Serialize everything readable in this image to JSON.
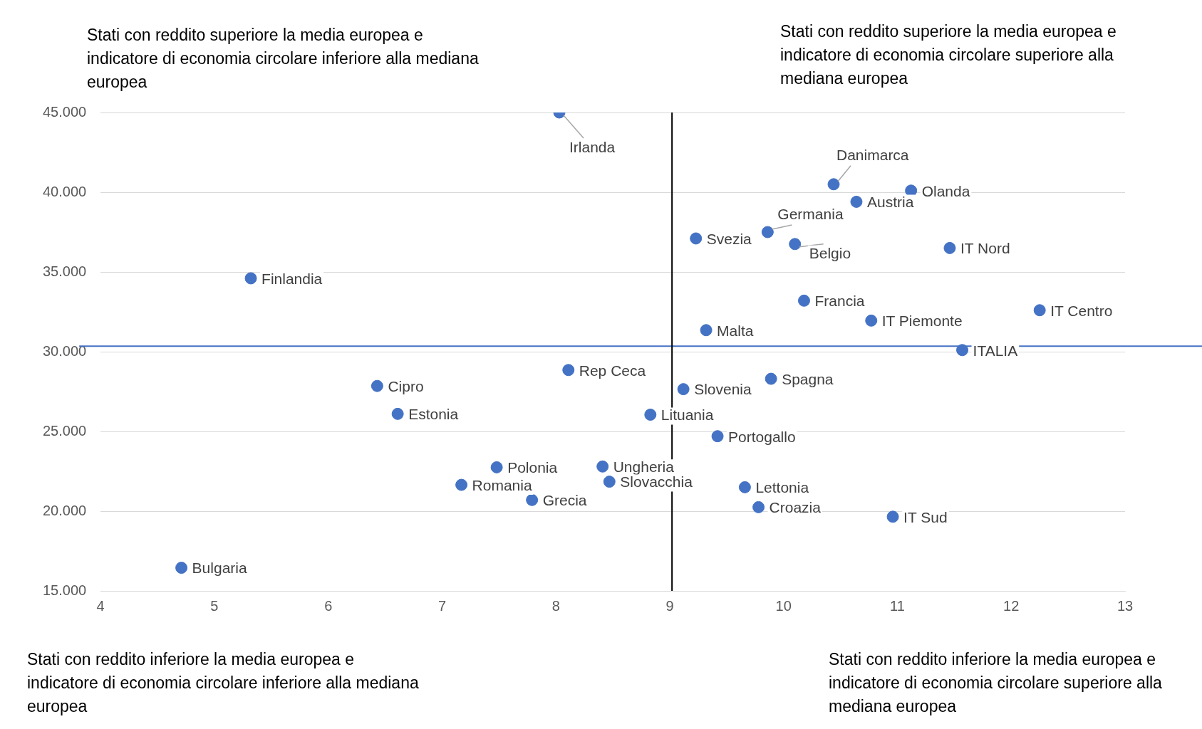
{
  "chart_data": {
    "type": "scatter",
    "annotations": [
      "Stati con reddito superiore la media europea e indicatore di economia circolare inferiore alla mediana europea",
      "Stati con reddito superiore la media europea e indicatore di economia circolare superiore alla mediana europea",
      "Stati con reddito inferiore la media europea e indicatore di economia circolare inferiore  alla mediana europea",
      "Stati con reddito inferiore la media europea e indicatore di economia circolare superiore alla mediana europea"
    ],
    "series": [
      {
        "name": "Irlanda",
        "color": "#4472c4",
        "x": [
          8.03
        ],
        "values": [
          45000
        ]
      },
      {
        "name": "Danimarca",
        "color": "#4472c4",
        "x": [
          10.44
        ],
        "values": [
          40500
        ]
      },
      {
        "name": "Olanda",
        "color": "#4472c4",
        "x": [
          11.12
        ],
        "values": [
          40100
        ]
      },
      {
        "name": "Austria",
        "color": "#4472c4",
        "x": [
          10.64
        ],
        "values": [
          39400
        ]
      },
      {
        "name": "Germania",
        "color": "#4472c4",
        "x": [
          9.86
        ],
        "values": [
          37500
        ]
      },
      {
        "name": "Svezia",
        "color": "#4472c4",
        "x": [
          9.23
        ],
        "values": [
          37100
        ]
      },
      {
        "name": "Belgio",
        "color": "#4472c4",
        "x": [
          10.1
        ],
        "values": [
          36750
        ]
      },
      {
        "name": "IT Nord",
        "color": "#4472c4",
        "x": [
          11.46
        ],
        "values": [
          36500
        ]
      },
      {
        "name": "Finlandia",
        "color": "#4472c4",
        "x": [
          5.32
        ],
        "values": [
          34600
        ]
      },
      {
        "name": "Francia",
        "color": "#4472c4",
        "x": [
          10.18
        ],
        "values": [
          33200
        ]
      },
      {
        "name": "IT Centro",
        "color": "#4472c4",
        "x": [
          12.25
        ],
        "values": [
          32600
        ]
      },
      {
        "name": "IT Piemonte",
        "color": "#4472c4",
        "x": [
          10.77
        ],
        "values": [
          31950
        ]
      },
      {
        "name": "Malta",
        "color": "#4472c4",
        "x": [
          9.32
        ],
        "values": [
          31350
        ]
      },
      {
        "name": "ITALIA",
        "color": "#4472c4",
        "x": [
          11.57
        ],
        "values": [
          30100
        ]
      },
      {
        "name": "Rep Ceca",
        "color": "#4472c4",
        "x": [
          8.11
        ],
        "values": [
          28850
        ]
      },
      {
        "name": "Spagna",
        "color": "#4472c4",
        "x": [
          9.89
        ],
        "values": [
          28300
        ]
      },
      {
        "name": "Cipro",
        "color": "#4472c4",
        "x": [
          6.43
        ],
        "values": [
          27850
        ]
      },
      {
        "name": "Slovenia",
        "color": "#4472c4",
        "x": [
          9.12
        ],
        "values": [
          27650
        ]
      },
      {
        "name": "Estonia",
        "color": "#4472c4",
        "x": [
          6.61
        ],
        "values": [
          26100
        ]
      },
      {
        "name": "Lituania",
        "color": "#4472c4",
        "x": [
          8.83
        ],
        "values": [
          26050
        ]
      },
      {
        "name": "Portogallo",
        "color": "#4472c4",
        "x": [
          9.42
        ],
        "values": [
          24700
        ]
      },
      {
        "name": "Polonia",
        "color": "#4472c4",
        "x": [
          7.48
        ],
        "values": [
          22750
        ]
      },
      {
        "name": "Ungheria",
        "color": "#4472c4",
        "x": [
          8.41
        ],
        "values": [
          22800
        ]
      },
      {
        "name": "Slovacchia",
        "color": "#4472c4",
        "x": [
          8.47
        ],
        "values": [
          21850
        ]
      },
      {
        "name": "Romania",
        "color": "#4472c4",
        "x": [
          7.17
        ],
        "values": [
          21650
        ]
      },
      {
        "name": "Lettonia",
        "color": "#4472c4",
        "x": [
          9.66
        ],
        "values": [
          21500
        ]
      },
      {
        "name": "Grecia",
        "color": "#4472c4",
        "x": [
          7.79
        ],
        "values": [
          20700
        ]
      },
      {
        "name": "Croazia",
        "color": "#4472c4",
        "x": [
          9.78
        ],
        "values": [
          20250
        ]
      },
      {
        "name": "IT Sud",
        "color": "#4472c4",
        "x": [
          10.96
        ],
        "values": [
          19650
        ]
      },
      {
        "name": "Bulgaria",
        "color": "#4472c4",
        "x": [
          4.71
        ],
        "values": [
          16450
        ]
      }
    ],
    "xlim": [
      4,
      13
    ],
    "xticks": [
      4,
      5,
      6,
      7,
      8,
      9,
      10,
      11,
      12,
      13
    ],
    "ylim": [
      15000,
      45000
    ],
    "yticks": [
      {
        "value": 15000,
        "label": "15.000"
      },
      {
        "value": 20000,
        "label": "20.000"
      },
      {
        "value": 25000,
        "label": "25.000"
      },
      {
        "value": 30000,
        "label": "30.000"
      },
      {
        "value": 35000,
        "label": "35.000"
      },
      {
        "value": 40000,
        "label": "40.000"
      },
      {
        "value": 45000,
        "label": "45.000"
      }
    ],
    "ref_lines": [
      {
        "axis": "y",
        "value": 30350,
        "color": "#4472c4"
      },
      {
        "axis": "x",
        "value": 9.02,
        "color": "#000000"
      }
    ],
    "grid": "y",
    "legend": false,
    "marker": "circle"
  }
}
